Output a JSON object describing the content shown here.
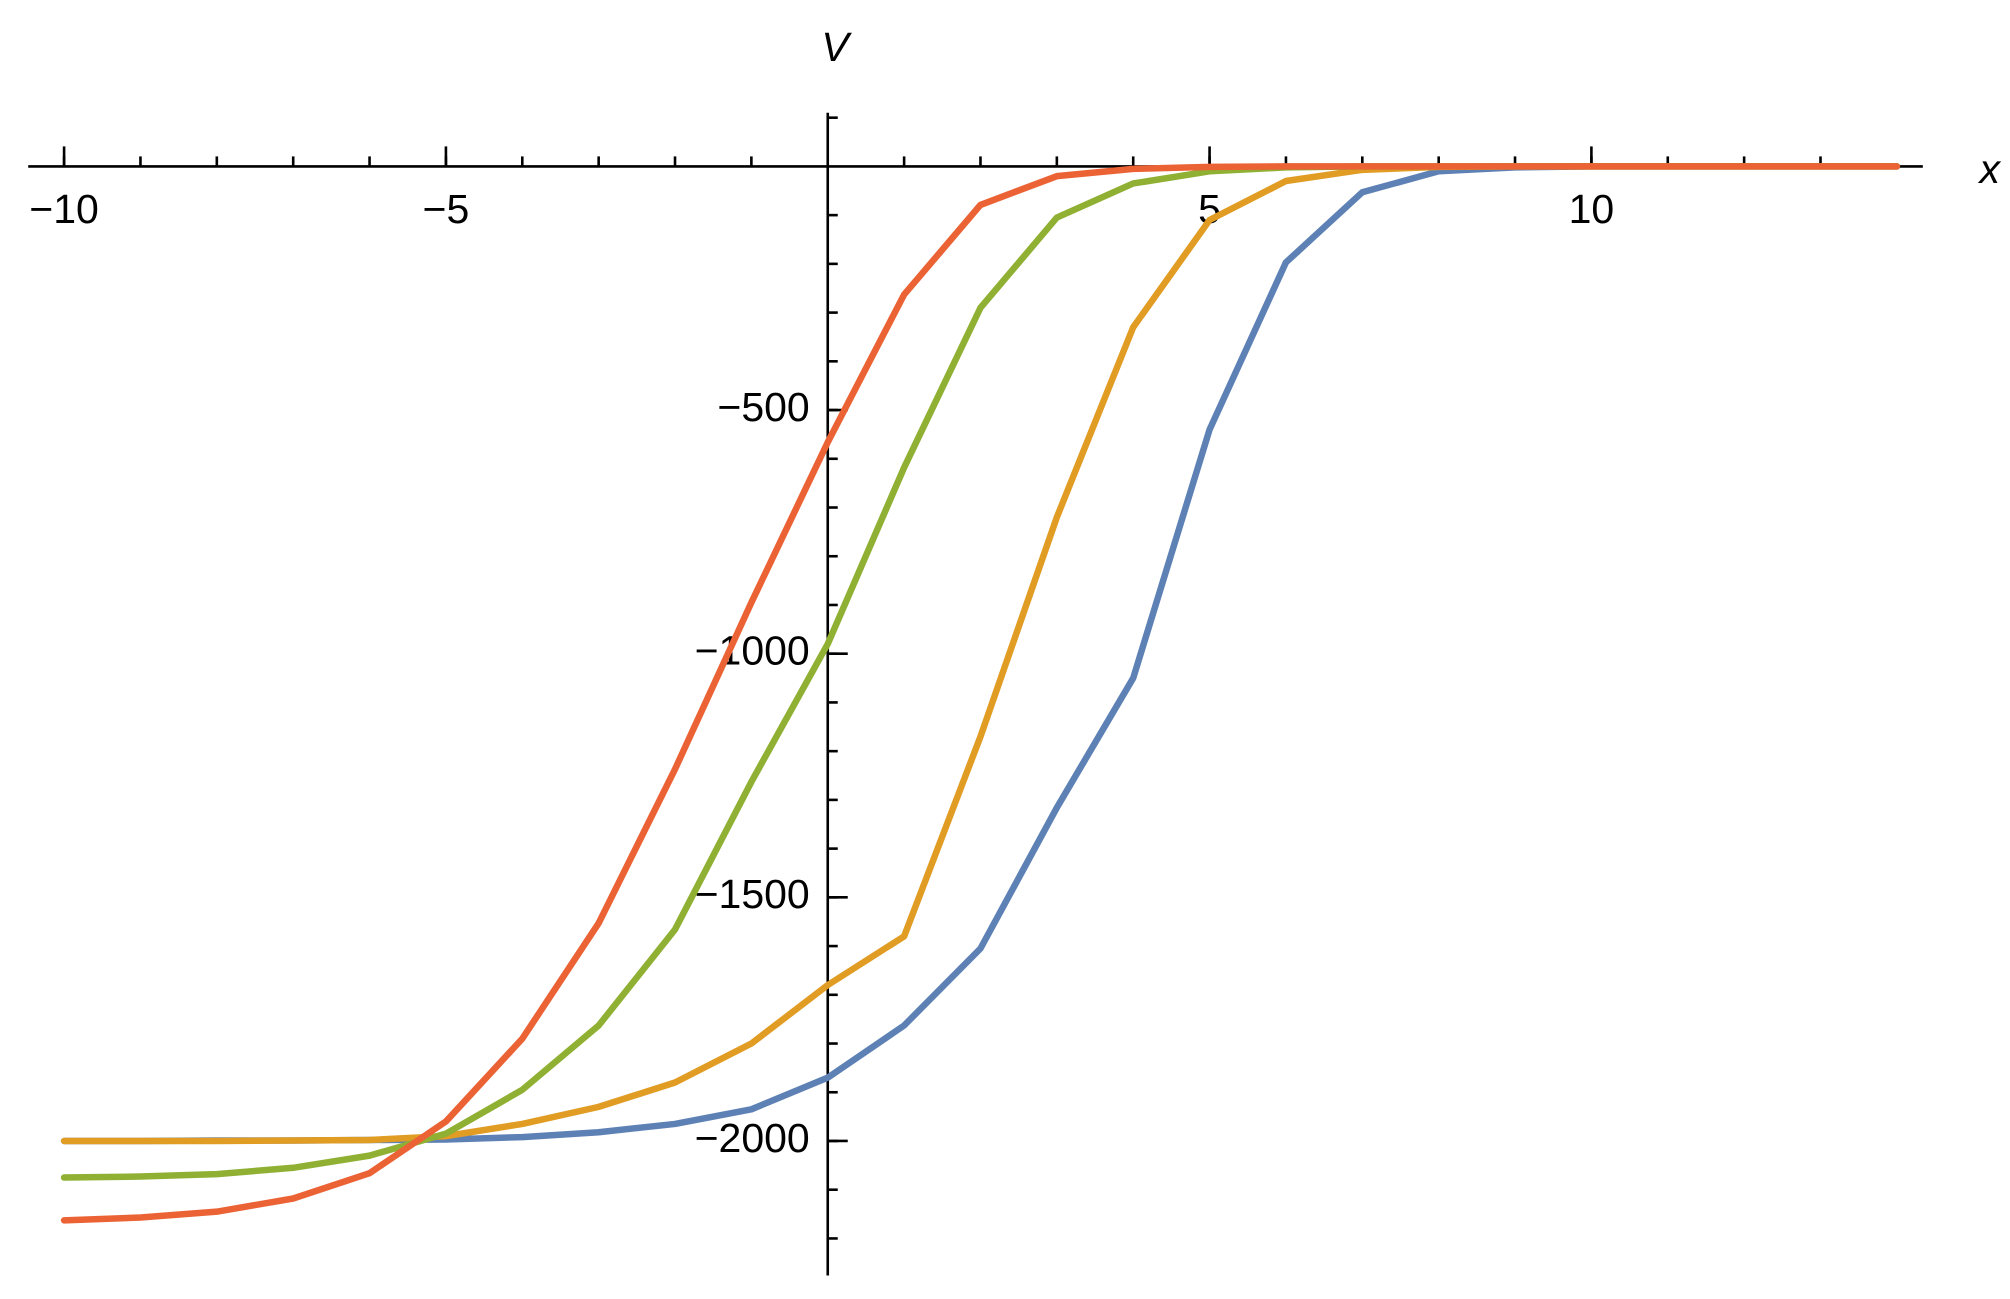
{
  "chart_data": {
    "type": "line",
    "x_label": "x",
    "y_label": "V",
    "x": [
      -10,
      -9,
      -8,
      -7,
      -6,
      -5,
      -4,
      -3,
      -2,
      -1,
      0,
      1,
      2,
      3,
      4,
      5,
      6,
      7,
      8,
      9,
      10,
      11,
      12,
      13,
      14
    ],
    "series": [
      {
        "color": "#5e81b5",
        "values": [
          -2000,
          -2000,
          -1999,
          -1999,
          -1998,
          -1997,
          -1992,
          -1982,
          -1965,
          -1935,
          -1870,
          -1763,
          -1605,
          -1316,
          -1050,
          -540,
          -197,
          -53,
          -10,
          -2,
          0,
          0,
          0,
          0,
          0
        ]
      },
      {
        "color": "#e19c24",
        "values": [
          -2000,
          -2000,
          -2000,
          -1999,
          -1998,
          -1990,
          -1965,
          -1930,
          -1880,
          -1800,
          -1680,
          -1580,
          -1170,
          -720,
          -330,
          -110,
          -30,
          -7,
          -1,
          0,
          0,
          0,
          0,
          0,
          0
        ]
      },
      {
        "color": "#8fb032",
        "values": [
          -2075,
          -2073,
          -2068,
          -2055,
          -2030,
          -1985,
          -1895,
          -1763,
          -1566,
          -1263,
          -980,
          -618,
          -290,
          -105,
          -35,
          -10,
          -2,
          0,
          0,
          0,
          0,
          0,
          0,
          0,
          0
        ]
      },
      {
        "color": "#eb6235",
        "values": [
          -2163,
          -2157,
          -2145,
          -2118,
          -2066,
          -1960,
          -1790,
          -1553,
          -1237,
          -895,
          -566,
          -263,
          -79,
          -20,
          -5,
          -1,
          0,
          0,
          0,
          0,
          0,
          0,
          0,
          0,
          0
        ]
      }
    ],
    "xlim": [
      -10.47,
      14.34
    ],
    "ylim": [
      -2276,
      110
    ],
    "xticks": [
      {
        "value": -10,
        "label": "−10"
      },
      {
        "value": -5,
        "label": "−5"
      },
      5,
      10
    ],
    "yticks": [
      {
        "value": -500,
        "label": "−500"
      },
      {
        "value": -1000,
        "label": "−1000"
      },
      {
        "value": -1500,
        "label": "−1500"
      },
      {
        "value": -2000,
        "label": "−2000"
      }
    ],
    "minor_xticks": [
      -10,
      -9,
      -8,
      -7,
      -6,
      -5,
      -4,
      -3,
      -2,
      -1,
      1,
      2,
      3,
      4,
      5,
      6,
      7,
      8,
      9,
      10,
      11,
      12,
      13
    ],
    "minor_yticks": [
      -2200,
      -2100,
      -2000,
      -1900,
      -1800,
      -1700,
      -1600,
      -1500,
      -1400,
      -1300,
      -1200,
      -1100,
      -1000,
      -900,
      -800,
      -700,
      -600,
      -500,
      -400,
      -300,
      -200,
      -100,
      100
    ]
  }
}
